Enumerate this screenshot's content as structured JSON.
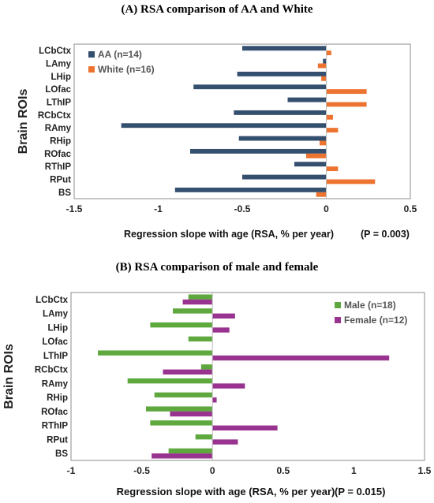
{
  "panel_titles": {
    "a": "(A) RSA comparison of AA and White",
    "b": "(B) RSA comparison of male and female"
  },
  "colors": {
    "aa": "#35506f",
    "white": "#ed7330",
    "male": "#5ea83e",
    "female": "#98338f"
  },
  "chart_data": [
    {
      "type": "bar",
      "orientation": "horizontal",
      "title": "(A) RSA comparison of AA and White",
      "categories": [
        "LCbCtx",
        "LAmy",
        "LHip",
        "LOfac",
        "LThIP",
        "RCbCtx",
        "RAmy",
        "RHip",
        "ROfac",
        "RThIP",
        "RPut",
        "BS"
      ],
      "series": [
        {
          "name": "AA (n=14)",
          "color": "#35506f",
          "values": [
            -0.5,
            -0.02,
            -0.53,
            -0.79,
            -0.23,
            -0.55,
            -1.22,
            -0.52,
            -0.81,
            -0.19,
            -0.5,
            -0.9
          ]
        },
        {
          "name": "White (n=16)",
          "color": "#ed7330",
          "values": [
            0.03,
            -0.05,
            -0.03,
            0.24,
            0.24,
            0.04,
            0.07,
            -0.04,
            -0.12,
            0.07,
            0.29,
            -0.06
          ]
        }
      ],
      "xlabel": "Regression slope with age (RSA, % per year)",
      "ylabel": "Brain ROIs",
      "xlim": [
        -1.5,
        0.5
      ],
      "xticks": [
        "-1.5",
        "-1",
        "-0.5",
        "0",
        "0.5"
      ],
      "annotation": "(P = 0.003)",
      "legend_position": "top-left"
    },
    {
      "type": "bar",
      "orientation": "horizontal",
      "title": "(B) RSA comparison of male and female",
      "categories": [
        "LCbCtx",
        "LAmy",
        "LHip",
        "LOfac",
        "LThIP",
        "RCbCtx",
        "RAmy",
        "RHip",
        "ROfac",
        "RThIP",
        "RPut",
        "BS"
      ],
      "series": [
        {
          "name": "Male (n=18)",
          "color": "#5ea83e",
          "values": [
            -0.17,
            -0.28,
            -0.44,
            -0.17,
            -0.81,
            -0.08,
            -0.6,
            -0.41,
            -0.47,
            -0.44,
            -0.12,
            -0.31
          ]
        },
        {
          "name": "Female (n=12)",
          "color": "#98338f",
          "values": [
            -0.21,
            0.16,
            0.12,
            0.0,
            1.25,
            -0.35,
            0.23,
            0.03,
            -0.3,
            0.46,
            0.18,
            -0.43
          ]
        }
      ],
      "xlabel": "Regression slope with age (RSA, % per year)",
      "ylabel": "Brain ROIs",
      "xlim": [
        -1,
        1.5
      ],
      "xticks": [
        "-1",
        "-0.5",
        "0",
        "0.5",
        "1",
        "1.5"
      ],
      "annotation": "(P = 0.015)",
      "legend_position": "top-right"
    }
  ]
}
